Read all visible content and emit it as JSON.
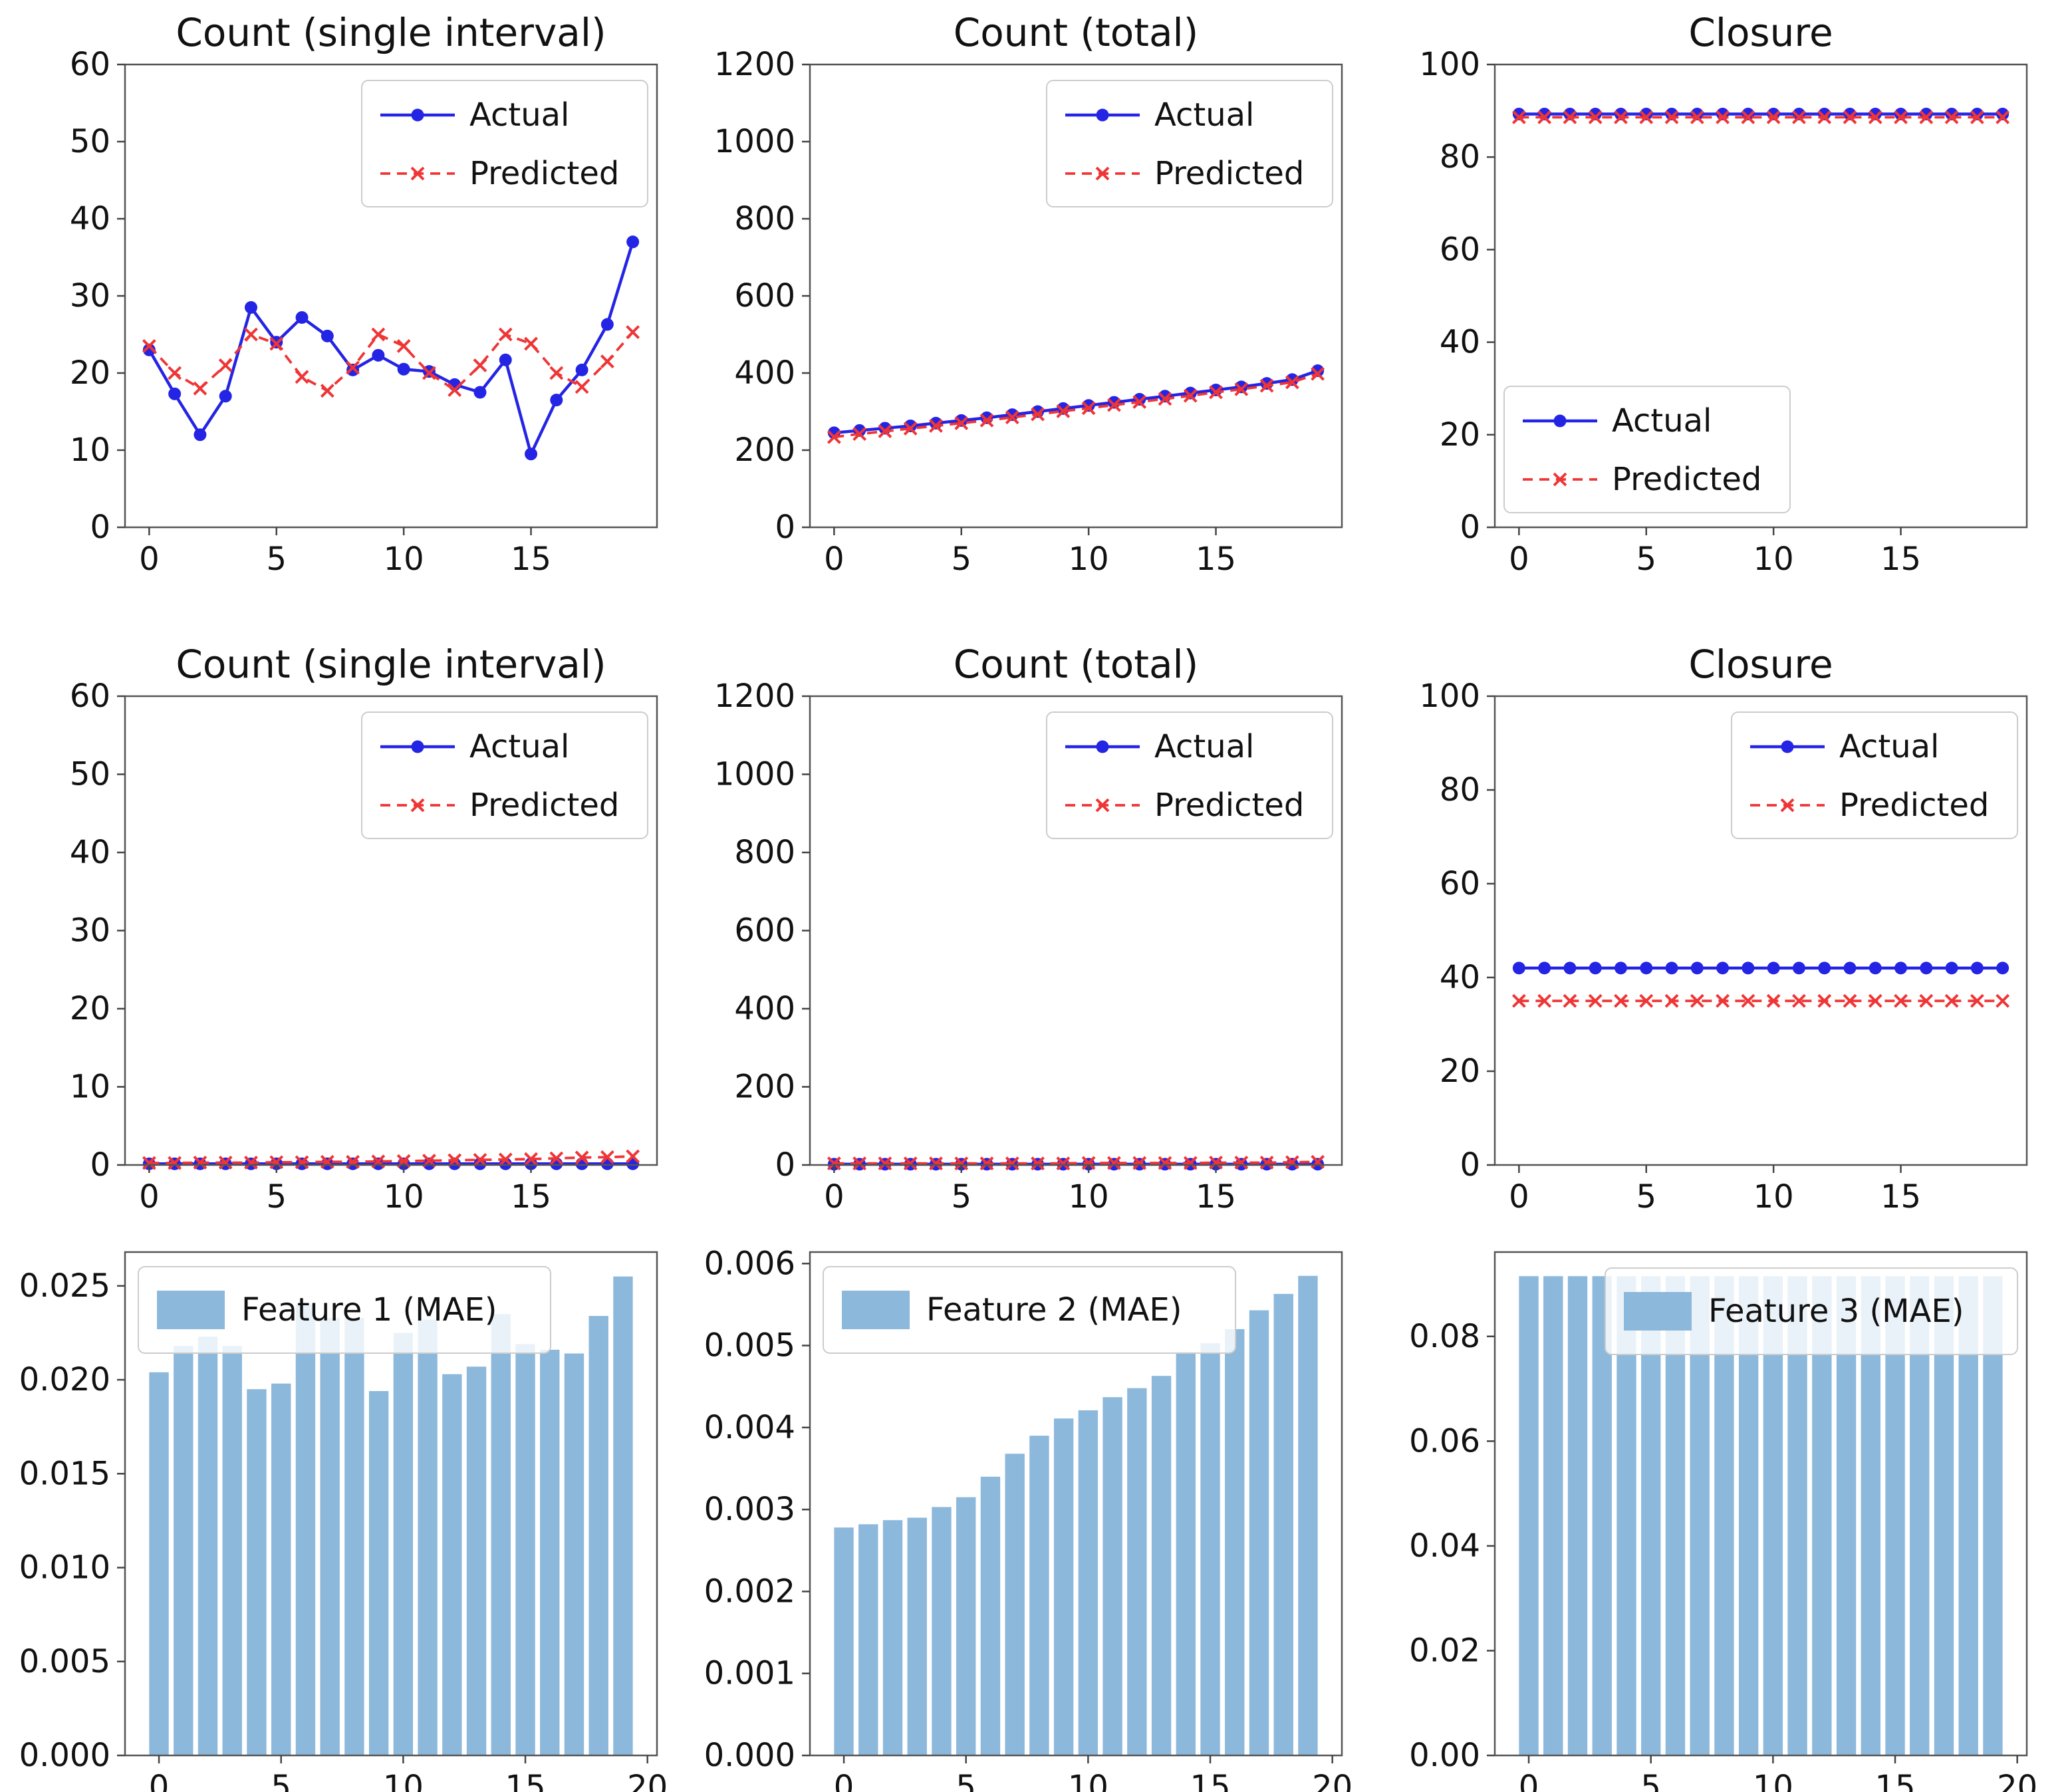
{
  "figure_title": "",
  "colors": {
    "actual": "#2424e4",
    "predicted": "#ef3535",
    "bar": "#8cb8dc",
    "axis": "#555555",
    "tick": "#444444",
    "text": "#111111",
    "legend_border": "#cccccc",
    "background": "#ffffff"
  },
  "legend_labels": {
    "actual": "Actual",
    "predicted": "Predicted"
  },
  "chart_data": [
    {
      "name": "count-single-interval-row1",
      "type": "line",
      "title": "Count (single interval)",
      "x": [
        0,
        1,
        2,
        3,
        4,
        5,
        6,
        7,
        8,
        9,
        10,
        11,
        12,
        13,
        14,
        15,
        16,
        17,
        18,
        19
      ],
      "xlim": [
        -0.95,
        19.95
      ],
      "ylim": [
        0,
        60
      ],
      "xticks": [
        0,
        5,
        10,
        15
      ],
      "xtick_labels": [
        "0",
        "5",
        "10",
        "15"
      ],
      "yticks": [
        0,
        10,
        20,
        30,
        40,
        50,
        60
      ],
      "ytick_labels": [
        "0",
        "10",
        "20",
        "30",
        "40",
        "50",
        "60"
      ],
      "legend": {
        "type": "lines",
        "position": "upper-right",
        "entries": [
          "Actual",
          "Predicted"
        ]
      },
      "series": [
        {
          "name": "Actual",
          "style": "solid-dot",
          "color_key": "actual",
          "values": [
            23,
            17.3,
            12,
            17,
            28.5,
            24,
            27.2,
            24.8,
            20.4,
            22.3,
            20.5,
            20.2,
            18.5,
            17.5,
            21.7,
            9.5,
            16.5,
            20.4,
            26.3,
            37
          ]
        },
        {
          "name": "Predicted",
          "style": "dashed-x",
          "color_key": "predicted",
          "values": [
            23.5,
            20,
            18,
            21,
            25,
            23.8,
            19.5,
            17.7,
            20.7,
            25,
            23.5,
            20,
            17.8,
            21,
            25,
            23.8,
            20,
            18.2,
            21.5,
            25.3
          ]
        }
      ]
    },
    {
      "name": "count-total-row1",
      "type": "line",
      "title": "Count (total)",
      "x": [
        0,
        1,
        2,
        3,
        4,
        5,
        6,
        7,
        8,
        9,
        10,
        11,
        12,
        13,
        14,
        15,
        16,
        17,
        18,
        19
      ],
      "xlim": [
        -0.95,
        19.95
      ],
      "ylim": [
        0,
        1200
      ],
      "xticks": [
        0,
        5,
        10,
        15
      ],
      "xtick_labels": [
        "0",
        "5",
        "10",
        "15"
      ],
      "yticks": [
        0,
        200,
        400,
        600,
        800,
        1000,
        1200
      ],
      "ytick_labels": [
        "0",
        "200",
        "400",
        "600",
        "800",
        "1000",
        "1200"
      ],
      "legend": {
        "type": "lines",
        "position": "upper-right",
        "entries": [
          "Actual",
          "Predicted"
        ]
      },
      "series": [
        {
          "name": "Actual",
          "style": "solid-dot",
          "color_key": "actual",
          "values": [
            245,
            251,
            257,
            263,
            270,
            277,
            284,
            292,
            300,
            308,
            316,
            324,
            332,
            340,
            348,
            356,
            364,
            373,
            383,
            406
          ]
        },
        {
          "name": "Predicted",
          "style": "dashed-x",
          "color_key": "predicted",
          "values": [
            234,
            242,
            249,
            256,
            263,
            270,
            277,
            285,
            293,
            301,
            309,
            317,
            325,
            333,
            341,
            350,
            358,
            367,
            376,
            398
          ]
        }
      ]
    },
    {
      "name": "closure-row1",
      "type": "line",
      "title": "Closure",
      "x": [
        0,
        1,
        2,
        3,
        4,
        5,
        6,
        7,
        8,
        9,
        10,
        11,
        12,
        13,
        14,
        15,
        16,
        17,
        18,
        19
      ],
      "xlim": [
        -0.95,
        19.95
      ],
      "ylim": [
        0,
        100
      ],
      "xticks": [
        0,
        5,
        10,
        15
      ],
      "xtick_labels": [
        "0",
        "5",
        "10",
        "15"
      ],
      "yticks": [
        0,
        20,
        40,
        60,
        80,
        100
      ],
      "ytick_labels": [
        "0",
        "20",
        "40",
        "60",
        "80",
        "100"
      ],
      "legend": {
        "type": "lines",
        "position": "lower-left",
        "entries": [
          "Actual",
          "Predicted"
        ]
      },
      "series": [
        {
          "name": "Actual",
          "style": "solid-dot",
          "color_key": "actual",
          "values": [
            89.3,
            89.3,
            89.3,
            89.3,
            89.3,
            89.3,
            89.3,
            89.3,
            89.3,
            89.3,
            89.3,
            89.3,
            89.3,
            89.3,
            89.3,
            89.3,
            89.3,
            89.3,
            89.3,
            89.3
          ]
        },
        {
          "name": "Predicted",
          "style": "dashed-x",
          "color_key": "predicted",
          "values": [
            88.6,
            88.6,
            88.6,
            88.6,
            88.6,
            88.6,
            88.6,
            88.6,
            88.6,
            88.6,
            88.6,
            88.6,
            88.6,
            88.6,
            88.6,
            88.6,
            88.6,
            88.6,
            88.6,
            88.6
          ]
        }
      ]
    },
    {
      "name": "count-single-interval-row2",
      "type": "line",
      "title": "Count (single interval)",
      "x": [
        0,
        1,
        2,
        3,
        4,
        5,
        6,
        7,
        8,
        9,
        10,
        11,
        12,
        13,
        14,
        15,
        16,
        17,
        18,
        19
      ],
      "xlim": [
        -0.95,
        19.95
      ],
      "ylim": [
        0,
        60
      ],
      "xticks": [
        0,
        5,
        10,
        15
      ],
      "xtick_labels": [
        "0",
        "5",
        "10",
        "15"
      ],
      "yticks": [
        0,
        10,
        20,
        30,
        40,
        50,
        60
      ],
      "ytick_labels": [
        "0",
        "10",
        "20",
        "30",
        "40",
        "50",
        "60"
      ],
      "legend": {
        "type": "lines",
        "position": "upper-right",
        "entries": [
          "Actual",
          "Predicted"
        ]
      },
      "series": [
        {
          "name": "Actual",
          "style": "solid-dot",
          "color_key": "actual",
          "values": [
            0.15,
            0.15,
            0.15,
            0.15,
            0.15,
            0.15,
            0.15,
            0.15,
            0.15,
            0.15,
            0.15,
            0.15,
            0.15,
            0.15,
            0.15,
            0.15,
            0.15,
            0.15,
            0.15,
            0.15
          ]
        },
        {
          "name": "Predicted",
          "style": "dashed-x",
          "color_key": "predicted",
          "values": [
            0.25,
            0.25,
            0.3,
            0.3,
            0.3,
            0.35,
            0.35,
            0.4,
            0.4,
            0.45,
            0.5,
            0.55,
            0.6,
            0.65,
            0.7,
            0.75,
            0.85,
            0.95,
            1.0,
            1.1
          ]
        }
      ]
    },
    {
      "name": "count-total-row2",
      "type": "line",
      "title": "Count (total)",
      "x": [
        0,
        1,
        2,
        3,
        4,
        5,
        6,
        7,
        8,
        9,
        10,
        11,
        12,
        13,
        14,
        15,
        16,
        17,
        18,
        19
      ],
      "xlim": [
        -0.95,
        19.95
      ],
      "ylim": [
        0,
        1200
      ],
      "xticks": [
        0,
        5,
        10,
        15
      ],
      "xtick_labels": [
        "0",
        "5",
        "10",
        "15"
      ],
      "yticks": [
        0,
        200,
        400,
        600,
        800,
        1000,
        1200
      ],
      "ytick_labels": [
        "0",
        "200",
        "400",
        "600",
        "800",
        "1000",
        "1200"
      ],
      "legend": {
        "type": "lines",
        "position": "upper-right",
        "entries": [
          "Actual",
          "Predicted"
        ]
      },
      "series": [
        {
          "name": "Actual",
          "style": "solid-dot",
          "color_key": "actual",
          "values": [
            2,
            2,
            2,
            2,
            2,
            2,
            2,
            2,
            2,
            2,
            2,
            2,
            2,
            2,
            2,
            2,
            2,
            2,
            2,
            2
          ]
        },
        {
          "name": "Predicted",
          "style": "dashed-x",
          "color_key": "predicted",
          "values": [
            4,
            4,
            4,
            4,
            4,
            4,
            4,
            4,
            4,
            4,
            5,
            5,
            5,
            5,
            5,
            6,
            6,
            6,
            7,
            8
          ]
        }
      ]
    },
    {
      "name": "closure-row2",
      "type": "line",
      "title": "Closure",
      "x": [
        0,
        1,
        2,
        3,
        4,
        5,
        6,
        7,
        8,
        9,
        10,
        11,
        12,
        13,
        14,
        15,
        16,
        17,
        18,
        19
      ],
      "xlim": [
        -0.95,
        19.95
      ],
      "ylim": [
        0,
        100
      ],
      "xticks": [
        0,
        5,
        10,
        15
      ],
      "xtick_labels": [
        "0",
        "5",
        "10",
        "15"
      ],
      "yticks": [
        0,
        20,
        40,
        60,
        80,
        100
      ],
      "ytick_labels": [
        "0",
        "20",
        "40",
        "60",
        "80",
        "100"
      ],
      "legend": {
        "type": "lines",
        "position": "upper-right",
        "entries": [
          "Actual",
          "Predicted"
        ]
      },
      "series": [
        {
          "name": "Actual",
          "style": "solid-dot",
          "color_key": "actual",
          "values": [
            42,
            42,
            42,
            42,
            42,
            42,
            42,
            42,
            42,
            42,
            42,
            42,
            42,
            42,
            42,
            42,
            42,
            42,
            42,
            42
          ]
        },
        {
          "name": "Predicted",
          "style": "dashed-x",
          "color_key": "predicted",
          "values": [
            35,
            35,
            35,
            35,
            35,
            35,
            35,
            35,
            35,
            35,
            35,
            35,
            35,
            35,
            35,
            35,
            35,
            35,
            35,
            35
          ]
        }
      ]
    },
    {
      "name": "feature1-mae",
      "type": "bar",
      "title": "",
      "x": [
        0,
        1,
        2,
        3,
        4,
        5,
        6,
        7,
        8,
        9,
        10,
        11,
        12,
        13,
        14,
        15,
        16,
        17,
        18,
        19
      ],
      "xlim": [
        -1.39,
        20.39
      ],
      "ylim": [
        0,
        0.0268
      ],
      "xticks": [
        0,
        5,
        10,
        15,
        20
      ],
      "xtick_labels": [
        "0",
        "5",
        "10",
        "15",
        "20"
      ],
      "yticks": [
        0,
        0.005,
        0.01,
        0.015,
        0.02,
        0.025
      ],
      "ytick_labels": [
        "0.000",
        "0.005",
        "0.010",
        "0.015",
        "0.020",
        "0.025"
      ],
      "legend": {
        "type": "patch",
        "position": "upper-left",
        "entries": [
          "Feature 1 (MAE)"
        ]
      },
      "values": [
        0.0204,
        0.0218,
        0.0223,
        0.0218,
        0.0195,
        0.0198,
        0.024,
        0.0233,
        0.0233,
        0.0194,
        0.0225,
        0.0232,
        0.0203,
        0.0207,
        0.0235,
        0.0219,
        0.0216,
        0.0214,
        0.0234,
        0.0255
      ]
    },
    {
      "name": "feature2-mae",
      "type": "bar",
      "title": "",
      "x": [
        0,
        1,
        2,
        3,
        4,
        5,
        6,
        7,
        8,
        9,
        10,
        11,
        12,
        13,
        14,
        15,
        16,
        17,
        18,
        19
      ],
      "xlim": [
        -1.39,
        20.39
      ],
      "ylim": [
        0,
        0.00614
      ],
      "xticks": [
        0,
        5,
        10,
        15,
        20
      ],
      "xtick_labels": [
        "0",
        "5",
        "10",
        "15",
        "20"
      ],
      "yticks": [
        0,
        0.001,
        0.002,
        0.003,
        0.004,
        0.005,
        0.006
      ],
      "ytick_labels": [
        "0.000",
        "0.001",
        "0.002",
        "0.003",
        "0.004",
        "0.005",
        "0.006"
      ],
      "legend": {
        "type": "patch",
        "position": "upper-left",
        "entries": [
          "Feature 2 (MAE)"
        ]
      },
      "values": [
        0.00278,
        0.00282,
        0.00287,
        0.0029,
        0.00303,
        0.00315,
        0.0034,
        0.00368,
        0.0039,
        0.00411,
        0.00421,
        0.00437,
        0.00448,
        0.00463,
        0.00492,
        0.00503,
        0.0052,
        0.00543,
        0.00563,
        0.00585
      ]
    },
    {
      "name": "feature3-mae",
      "type": "bar",
      "title": "",
      "x": [
        0,
        1,
        2,
        3,
        4,
        5,
        6,
        7,
        8,
        9,
        10,
        11,
        12,
        13,
        14,
        15,
        16,
        17,
        18,
        19
      ],
      "xlim": [
        -1.39,
        20.39
      ],
      "ylim": [
        0,
        0.0961
      ],
      "xticks": [
        0,
        5,
        10,
        15,
        20
      ],
      "xtick_labels": [
        "0",
        "5",
        "10",
        "15",
        "20"
      ],
      "yticks": [
        0,
        0.02,
        0.04,
        0.06,
        0.08
      ],
      "ytick_labels": [
        "0.00",
        "0.02",
        "0.04",
        "0.06",
        "0.08"
      ],
      "legend": {
        "type": "patch",
        "position": "upper-right",
        "entries": [
          "Feature 3 (MAE)"
        ]
      },
      "values": [
        0.0915,
        0.0915,
        0.0915,
        0.0915,
        0.0915,
        0.0915,
        0.0915,
        0.0915,
        0.0915,
        0.0915,
        0.0915,
        0.0915,
        0.0915,
        0.0915,
        0.0915,
        0.0915,
        0.0915,
        0.0915,
        0.0915,
        0.0915
      ]
    }
  ]
}
